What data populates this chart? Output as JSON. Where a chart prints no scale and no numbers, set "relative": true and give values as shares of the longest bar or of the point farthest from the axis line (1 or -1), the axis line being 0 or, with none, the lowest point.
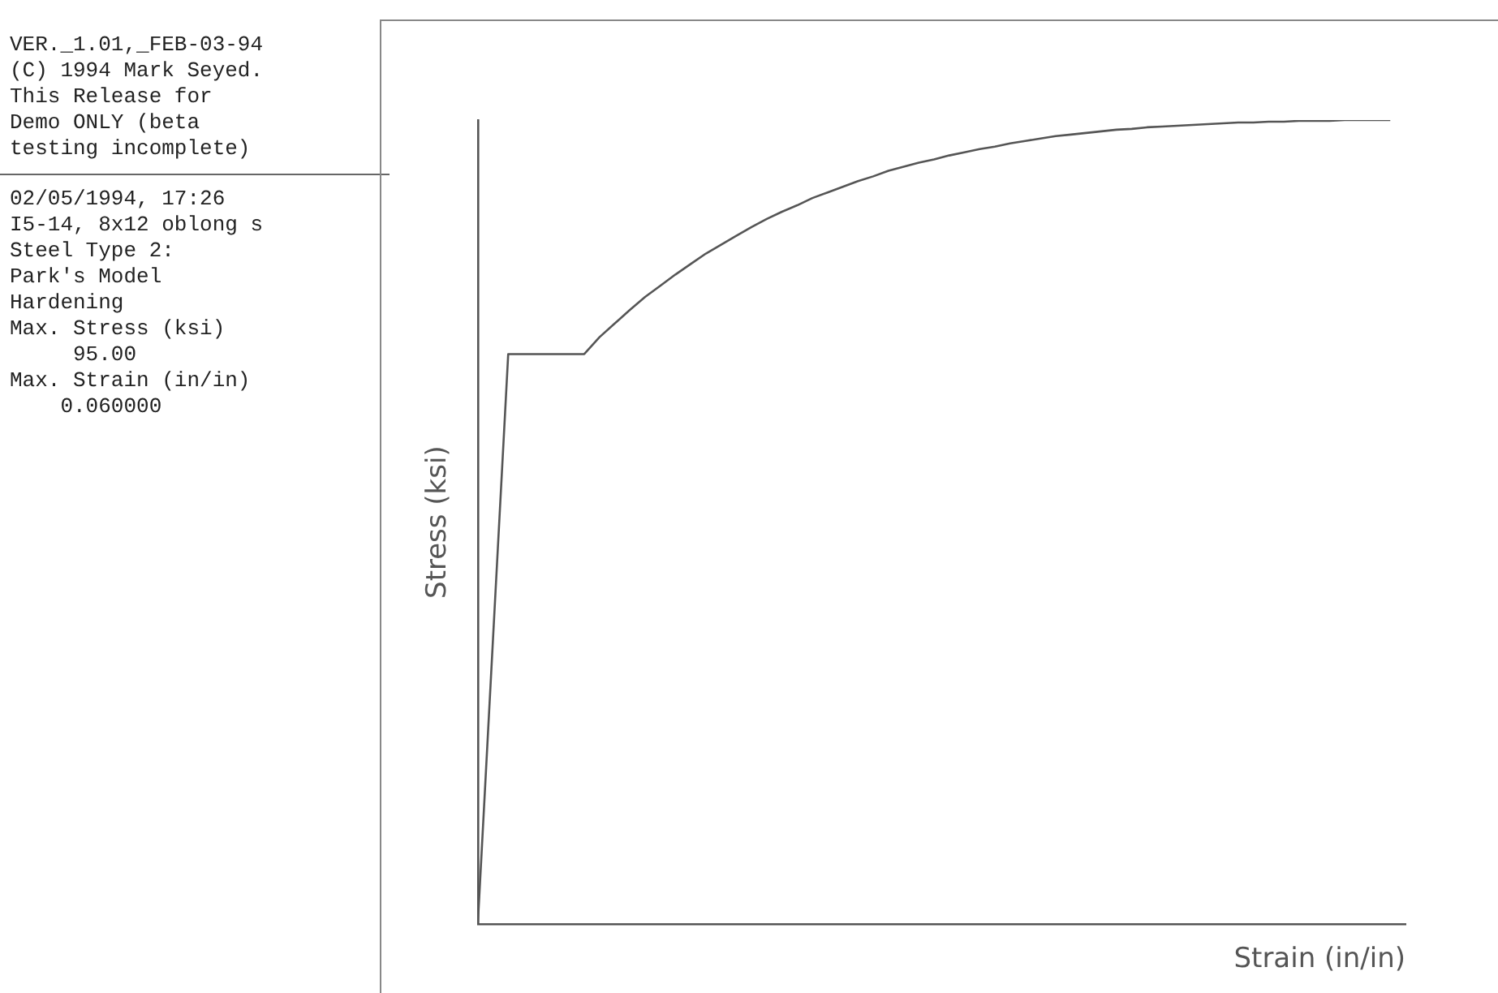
{
  "chart_data": {
    "type": "line",
    "relative": true,
    "xlabel": "Strain (in/in)",
    "ylabel": "Stress (ksi)",
    "categories": [
      null,
      null,
      null,
      null,
      null,
      null,
      null,
      null,
      null,
      null,
      null,
      null,
      null,
      null,
      null,
      null,
      null,
      null,
      null,
      null,
      null,
      null,
      null,
      null,
      null,
      null,
      null,
      null,
      null,
      null,
      null,
      null,
      null,
      null,
      null,
      null,
      null,
      null,
      null,
      null,
      null,
      null,
      null,
      null,
      null,
      null,
      null,
      null,
      null,
      null,
      null,
      null,
      null,
      null,
      null,
      null,
      null,
      null,
      null,
      null,
      null,
      null
    ],
    "series": [
      {
        "color": "#555555",
        "values": [
          0,
          0.355,
          0.709,
          0.709,
          0.709,
          0.709,
          0.709,
          0.709,
          0.73,
          0.747,
          0.764,
          0.78,
          0.794,
          0.808,
          0.821,
          0.834,
          0.845,
          0.856,
          0.867,
          0.877,
          0.886,
          0.894,
          0.903,
          0.91,
          0.917,
          0.924,
          0.93,
          0.937,
          0.942,
          0.947,
          0.951,
          0.956,
          0.96,
          0.964,
          0.967,
          0.971,
          0.974,
          0.977,
          0.98,
          0.982,
          0.984,
          0.986,
          0.988,
          0.989,
          0.991,
          0.992,
          0.993,
          0.994,
          0.995,
          0.996,
          0.997,
          0.997,
          0.998,
          0.998,
          0.999,
          0.999,
          0.999,
          1,
          1,
          1,
          1,
          null
        ]
      }
    ],
    "legend": false,
    "marker": "none",
    "line_style": "solid",
    "annotations": [
      "VER._1.01,_FEB-03-94",
      "(C) 1994 Mark Seyed.",
      "This Release for",
      "Demo ONLY (beta",
      "testing incomplete)",
      "02/05/1994, 17:26",
      "I5-14, 8x12 oblong s",
      "Steel Type 2:",
      "Park's Model",
      "Hardening",
      "Max. Stress (ksi)",
      "     95.00",
      "Max. Strain (in/in)",
      "    0.060000"
    ]
  }
}
